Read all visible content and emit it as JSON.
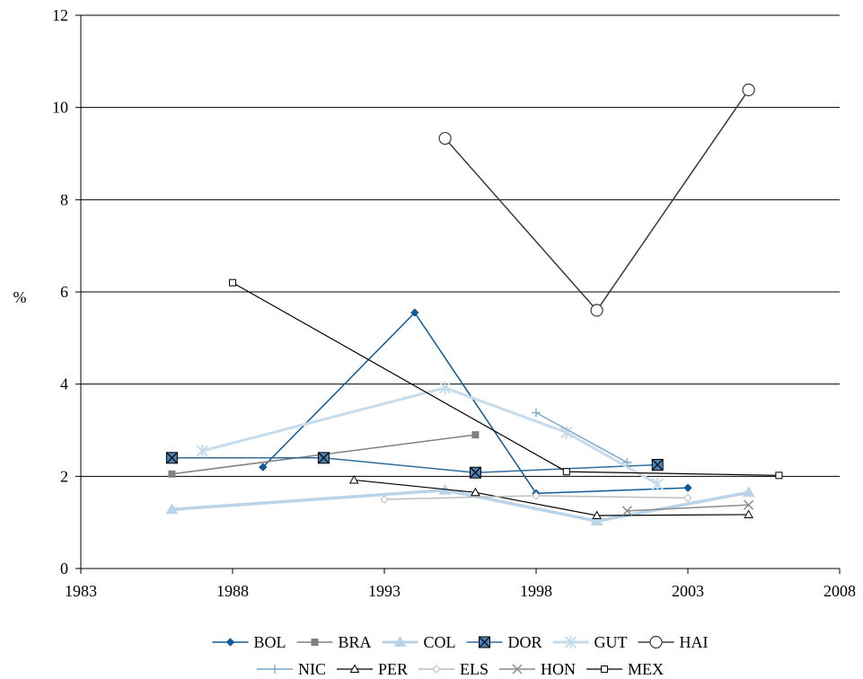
{
  "chart_data": {
    "type": "line",
    "title": "",
    "xlabel": "",
    "ylabel": "%",
    "xlim": [
      1983,
      2008
    ],
    "ylim": [
      0,
      12
    ],
    "xticks": [
      1983,
      1988,
      1993,
      1998,
      2003,
      2008
    ],
    "yticks": [
      0,
      2,
      4,
      6,
      8,
      10,
      12
    ],
    "grid": "horizontal",
    "legend_position": "bottom",
    "series": [
      {
        "name": "BOL",
        "color": "#0e5a9a",
        "marker": "diamond-filled",
        "width": 1.5,
        "points": [
          [
            1989,
            2.2
          ],
          [
            1994,
            5.55
          ],
          [
            1998,
            1.63
          ],
          [
            2003,
            1.75
          ]
        ]
      },
      {
        "name": "BRA",
        "color": "#808080",
        "marker": "square-filled",
        "width": 1.5,
        "points": [
          [
            1986,
            2.05
          ],
          [
            1996,
            2.9
          ]
        ]
      },
      {
        "name": "COL",
        "color": "#b9d3e8",
        "marker": "triangle-filled",
        "width": 3.5,
        "points": [
          [
            1986,
            1.28
          ],
          [
            1995,
            1.7
          ],
          [
            2000,
            1.03
          ],
          [
            2005,
            1.65
          ]
        ]
      },
      {
        "name": "DOR",
        "color": "#2e6e9e",
        "marker": "square-x",
        "width": 1.5,
        "points": [
          [
            1986,
            2.4
          ],
          [
            1991,
            2.4
          ],
          [
            1996,
            2.08
          ],
          [
            2002,
            2.25
          ]
        ]
      },
      {
        "name": "GUT",
        "color": "#c6dcec",
        "marker": "asterisk",
        "width": 3,
        "points": [
          [
            1987,
            2.55
          ],
          [
            1995,
            3.92
          ],
          [
            1999,
            2.95
          ],
          [
            2002,
            1.83
          ]
        ]
      },
      {
        "name": "HAI",
        "color": "#3a3a3a",
        "marker": "circle-open",
        "width": 1.5,
        "points": [
          [
            1995,
            9.33
          ],
          [
            2000,
            5.6
          ],
          [
            2005,
            10.38
          ]
        ]
      },
      {
        "name": "NIC",
        "color": "#7ea9cb",
        "marker": "plus",
        "width": 1.5,
        "points": [
          [
            1998,
            3.38
          ],
          [
            2001,
            2.3
          ]
        ]
      },
      {
        "name": "PER",
        "color": "#000000",
        "marker": "triangle-open",
        "width": 1.2,
        "points": [
          [
            1992,
            1.92
          ],
          [
            1996,
            1.65
          ],
          [
            2000,
            1.15
          ],
          [
            2005,
            1.17
          ]
        ]
      },
      {
        "name": "ELS",
        "color": "#bdbdbd",
        "marker": "diamond-open",
        "width": 1.5,
        "points": [
          [
            1993,
            1.5
          ],
          [
            1998,
            1.58
          ],
          [
            2003,
            1.53
          ]
        ]
      },
      {
        "name": "HON",
        "color": "#8c8c8c",
        "marker": "x",
        "width": 1.5,
        "points": [
          [
            2001,
            1.25
          ],
          [
            2005,
            1.38
          ]
        ]
      },
      {
        "name": "MEX",
        "color": "#000000",
        "marker": "square-open",
        "width": 1.2,
        "points": [
          [
            1988,
            6.2
          ],
          [
            1999,
            2.1
          ],
          [
            2006,
            2.02
          ]
        ]
      }
    ]
  }
}
